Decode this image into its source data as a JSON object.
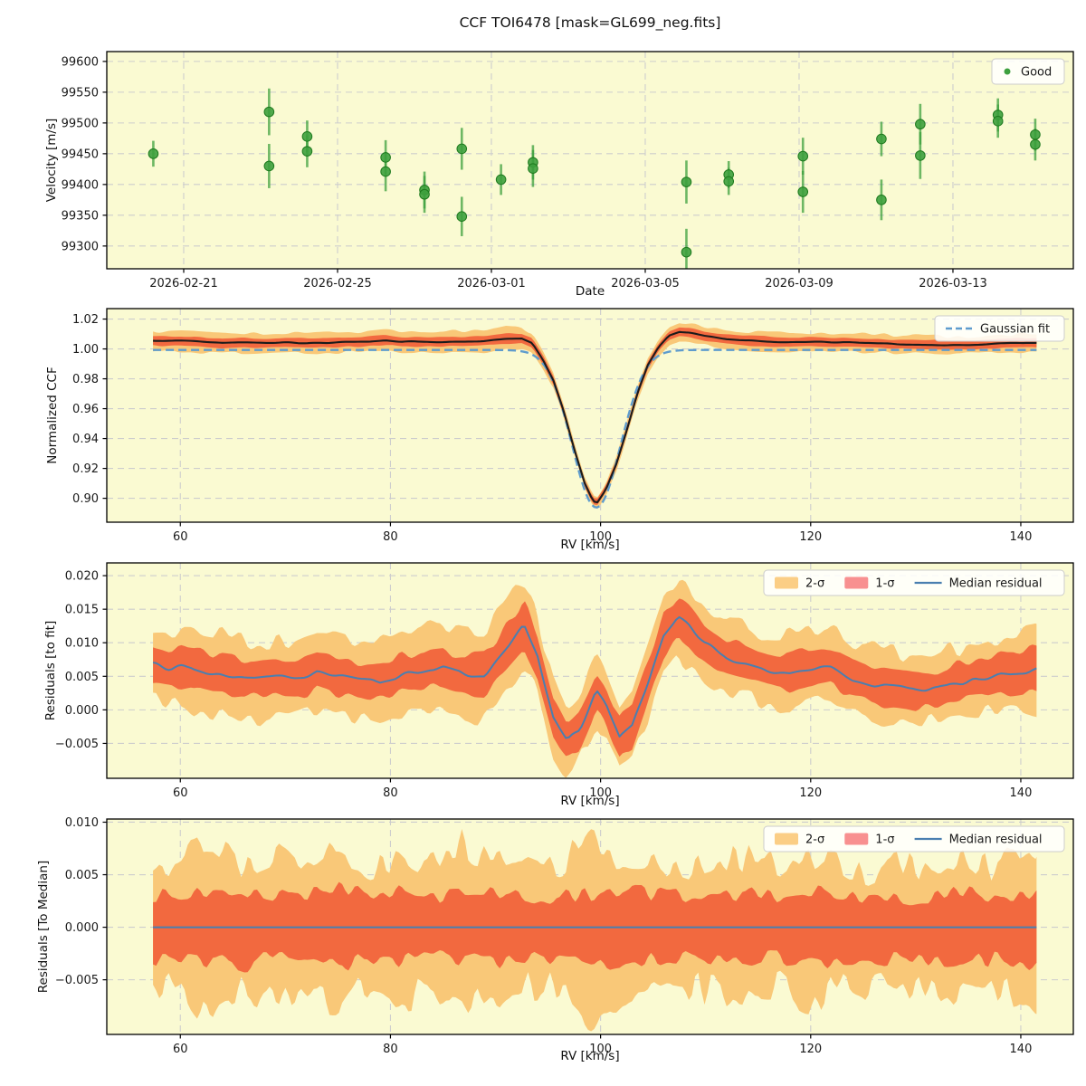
{
  "title": "CCF TOI6478 [mask=GL699_neg.fits]",
  "colors": {
    "background": "#fafad2",
    "grid": "#cdcdcd",
    "axis": "#000000",
    "text": "#1a1a1a",
    "point_fill": "#3da03d",
    "point_edge": "#1e7a1e",
    "errorbar": "#3da03d",
    "band2": "#f9c878",
    "band1": "#f2693f",
    "band2_legend": "#fbce85",
    "band1_legend": "#f89090",
    "median_line": "#4a7fb0",
    "ccf_line": "#1b1b1b",
    "gauss_line": "#5f9ccd",
    "legend_bg": "#ffffff",
    "legend_border": "#cccccc"
  },
  "chart_data": [
    {
      "id": "velocity-vs-date",
      "type": "scatter",
      "xlabel": "Date",
      "ylabel": "Velocity [m/s]",
      "x_epoch": "days since 2026-02-19",
      "xlim": [
        0,
        25.13
      ],
      "ylim": [
        99263,
        99616
      ],
      "x_ticks": {
        "values": [
          2,
          6,
          10,
          14,
          18,
          22
        ],
        "labels": [
          "2026-02-21",
          "2026-02-25",
          "2026-03-01",
          "2026-03-05",
          "2026-03-09",
          "2026-03-13"
        ]
      },
      "y_ticks": {
        "values": [
          99300,
          99350,
          99400,
          99450,
          99500,
          99550,
          99600
        ],
        "labels": [
          "99300",
          "99350",
          "99400",
          "99450",
          "99500",
          "99550",
          "99600"
        ]
      },
      "legend": [
        {
          "label": "Good",
          "swatch": "marker",
          "color": "point_fill"
        }
      ],
      "points": {
        "day": [
          1.21,
          4.22,
          4.22,
          5.21,
          5.21,
          7.25,
          7.25,
          8.26,
          8.26,
          9.23,
          9.23,
          10.25,
          11.08,
          11.08,
          15.07,
          15.07,
          16.17,
          16.17,
          18.1,
          18.1,
          20.14,
          20.14,
          21.15,
          21.15,
          23.17,
          23.17,
          24.14,
          24.14
        ],
        "velocity": [
          99450,
          99518,
          99430,
          99478,
          99454,
          99444,
          99421,
          99391,
          99384,
          99458,
          99348,
          99408,
          99436,
          99426,
          99404,
          99290,
          99416,
          99405,
          99446,
          99388,
          99474,
          99375,
          99498,
          99447,
          99513,
          99503,
          99481,
          99465
        ],
        "error": [
          21,
          38,
          36,
          26,
          26,
          28,
          32,
          30,
          30,
          34,
          32,
          25,
          28,
          30,
          35,
          38,
          22,
          22,
          30,
          34,
          28,
          33,
          33,
          38,
          27,
          27,
          26,
          26
        ]
      }
    },
    {
      "id": "normalized-ccf",
      "type": "line-band",
      "xlabel": "RV [km/s]",
      "ylabel": "Normalized CCF",
      "xlim": [
        53,
        145
      ],
      "ylim": [
        0.884,
        1.027
      ],
      "x_ticks": {
        "values": [
          60,
          80,
          100,
          120,
          140
        ],
        "labels": [
          "60",
          "80",
          "100",
          "120",
          "140"
        ]
      },
      "y_ticks": {
        "values": [
          0.9,
          0.92,
          0.94,
          0.96,
          0.98,
          1.0,
          1.02
        ],
        "labels": [
          "0.90",
          "0.92",
          "0.94",
          "0.96",
          "0.98",
          "1.00",
          "1.02"
        ]
      },
      "legend": [
        {
          "label": "Gaussian fit",
          "swatch": "dashed-line",
          "color": "gauss_line"
        }
      ],
      "median": {
        "x": [
          57.4,
          60,
          62,
          64,
          66,
          68,
          70,
          72,
          74,
          76,
          78,
          79.5,
          81,
          83,
          85,
          87,
          89,
          91,
          92.5,
          93.5,
          94.5,
          95.5,
          96.5,
          97.5,
          98.5,
          99.3,
          99.7,
          100.5,
          101.5,
          102.5,
          103.5,
          104.5,
          105.5,
          106.5,
          107.5,
          108.5,
          110,
          112,
          114,
          116,
          118,
          120,
          122,
          124,
          126,
          128,
          130,
          132,
          134,
          136,
          138,
          140,
          141.5
        ],
        "y": [
          1.0052,
          1.0055,
          1.0048,
          1.0038,
          1.0042,
          1.004,
          1.0044,
          1.004,
          1.0042,
          1.0048,
          1.005,
          1.006,
          1.0048,
          1.0048,
          1.0047,
          1.005,
          1.0055,
          1.007,
          1.0072,
          1.004,
          0.993,
          0.979,
          0.958,
          0.933,
          0.91,
          0.898,
          0.8975,
          0.906,
          0.923,
          0.946,
          0.97,
          0.989,
          1.001,
          1.009,
          1.0115,
          1.011,
          1.0085,
          1.0065,
          1.0055,
          1.0048,
          1.0045,
          1.0048,
          1.0045,
          1.0042,
          1.0038,
          1.0032,
          1.003,
          1.0028,
          1.0025,
          1.003,
          1.0038,
          1.004,
          1.0042
        ]
      },
      "bands": {
        "x": [
          57.4,
          62,
          68,
          74,
          80,
          86,
          91,
          94,
          97,
          99.5,
          102,
          105,
          107.5,
          111,
          116,
          122,
          128,
          134,
          139,
          141.5
        ],
        "sigma1": [
          0.003,
          0.0032,
          0.003,
          0.0031,
          0.0033,
          0.0031,
          0.0034,
          0.0028,
          0.0022,
          0.002,
          0.0023,
          0.0028,
          0.003,
          0.0032,
          0.0034,
          0.0032,
          0.003,
          0.0028,
          0.003,
          0.0032
        ],
        "sigma2": [
          0.0062,
          0.0072,
          0.0065,
          0.0068,
          0.0066,
          0.007,
          0.0075,
          0.0055,
          0.0042,
          0.0038,
          0.0045,
          0.0055,
          0.0065,
          0.006,
          0.0062,
          0.0058,
          0.006,
          0.0056,
          0.0058,
          0.006
        ]
      },
      "gaussian_fit": {
        "baseline": 0.9993,
        "depth": 0.1055,
        "center": 99.6,
        "sigma": 2.3,
        "x_range": [
          57.4,
          141.5
        ]
      }
    },
    {
      "id": "residuals-to-fit",
      "type": "line-band",
      "xlabel": "RV [km/s]",
      "ylabel": "Residuals [to fit]",
      "xlim": [
        53,
        145
      ],
      "ylim": [
        -0.0102,
        0.0219
      ],
      "x_ticks": {
        "values": [
          60,
          80,
          100,
          120,
          140
        ],
        "labels": [
          "60",
          "80",
          "100",
          "120",
          "140"
        ]
      },
      "y_ticks": {
        "values": [
          0.02,
          0.015,
          0.01,
          0.005,
          0.0,
          -0.005
        ],
        "labels": [
          "0.020",
          "0.015",
          "0.010",
          "0.005",
          "0.000",
          "−0.005"
        ]
      },
      "legend": [
        {
          "label": "2-σ",
          "swatch": "patch",
          "color": "band2_legend"
        },
        {
          "label": "1-σ",
          "swatch": "patch",
          "color": "band1_legend"
        },
        {
          "label": "Median residual",
          "swatch": "line",
          "color": "median_line"
        }
      ],
      "median": {
        "x": [
          57.4,
          59,
          61,
          63,
          65,
          67,
          69,
          71,
          73,
          75,
          77,
          79,
          81,
          83,
          85,
          87,
          89,
          91,
          92.7,
          94,
          95.5,
          96.8,
          98,
          99.6,
          100.5,
          101.8,
          103,
          104.5,
          106,
          107.4,
          108.5,
          110,
          112,
          114,
          116,
          118,
          120,
          122,
          124,
          126,
          128,
          130,
          132,
          134,
          136,
          138,
          140,
          141.5
        ],
        "y": [
          0.0068,
          0.0062,
          0.0065,
          0.0053,
          0.005,
          0.0045,
          0.0047,
          0.0046,
          0.0056,
          0.005,
          0.0044,
          0.0043,
          0.0053,
          0.0059,
          0.0061,
          0.0053,
          0.0051,
          0.0092,
          0.0125,
          0.008,
          -0.001,
          -0.0047,
          -0.003,
          0.0028,
          0.0008,
          -0.0044,
          -0.0025,
          0.0042,
          0.011,
          0.0138,
          0.0125,
          0.0097,
          0.0078,
          0.007,
          0.006,
          0.0056,
          0.0062,
          0.0065,
          0.0046,
          0.0037,
          0.0034,
          0.0031,
          0.0031,
          0.0042,
          0.0044,
          0.0053,
          0.0056,
          0.0058
        ]
      },
      "bands": {
        "x": [
          57.4,
          62,
          68,
          74,
          80,
          86,
          91,
          93,
          97,
          100,
          102,
          105,
          107.5,
          111,
          116,
          122,
          128,
          134,
          139,
          141.5
        ],
        "sigma1": [
          0.0027,
          0.0028,
          0.0026,
          0.0027,
          0.0028,
          0.0027,
          0.0033,
          0.0035,
          0.003,
          0.003,
          0.003,
          0.0032,
          0.003,
          0.0028,
          0.0027,
          0.0028,
          0.0026,
          0.0026,
          0.0028,
          0.0034
        ],
        "sigma2": [
          0.0052,
          0.0062,
          0.0056,
          0.0058,
          0.006,
          0.0065,
          0.0068,
          0.006,
          0.0048,
          0.0046,
          0.0048,
          0.0055,
          0.006,
          0.0055,
          0.0052,
          0.0055,
          0.005,
          0.005,
          0.0052,
          0.0062
        ]
      }
    },
    {
      "id": "residuals-to-median",
      "type": "line-band",
      "xlabel": "RV [km/s]",
      "ylabel": "Residuals [To Median]",
      "xlim": [
        53,
        145
      ],
      "ylim": [
        -0.0102,
        0.0103
      ],
      "x_ticks": {
        "values": [
          60,
          80,
          100,
          120,
          140
        ],
        "labels": [
          "60",
          "80",
          "100",
          "120",
          "140"
        ]
      },
      "y_ticks": {
        "values": [
          0.01,
          0.005,
          0.0,
          -0.005
        ],
        "labels": [
          "0.010",
          "0.005",
          "0.000",
          "−0.005"
        ]
      },
      "legend": [
        {
          "label": "2-σ",
          "swatch": "patch",
          "color": "band2_legend"
        },
        {
          "label": "1-σ",
          "swatch": "patch",
          "color": "band1_legend"
        },
        {
          "label": "Median residual",
          "swatch": "line",
          "color": "median_line"
        }
      ],
      "median": {
        "x": [
          57.4,
          141.5
        ],
        "y": [
          0,
          0
        ]
      },
      "bands": {
        "x": [
          57.4,
          60,
          63,
          66,
          69,
          72,
          75,
          78,
          81,
          84,
          87,
          90,
          93,
          96,
          99,
          102,
          105,
          108,
          111,
          114,
          117,
          120,
          123,
          126,
          129,
          132,
          135,
          138,
          141.5
        ],
        "sigma1": [
          0.003,
          0.0028,
          0.0033,
          0.0036,
          0.0027,
          0.0031,
          0.0038,
          0.003,
          0.0033,
          0.0028,
          0.0032,
          0.0033,
          0.0031,
          0.0028,
          0.0031,
          0.0034,
          0.0032,
          0.0028,
          0.0033,
          0.0031,
          0.0028,
          0.0033,
          0.003,
          0.0031,
          0.0028,
          0.0031,
          0.0033,
          0.003,
          0.0036
        ],
        "sigma2": [
          0.0052,
          0.006,
          0.0082,
          0.0058,
          0.0066,
          0.006,
          0.0075,
          0.0056,
          0.0068,
          0.006,
          0.008,
          0.0063,
          0.0058,
          0.0055,
          0.0085,
          0.0062,
          0.0058,
          0.0055,
          0.006,
          0.0068,
          0.0056,
          0.007,
          0.0058,
          0.0052,
          0.006,
          0.0055,
          0.0063,
          0.0058,
          0.008
        ]
      }
    }
  ]
}
